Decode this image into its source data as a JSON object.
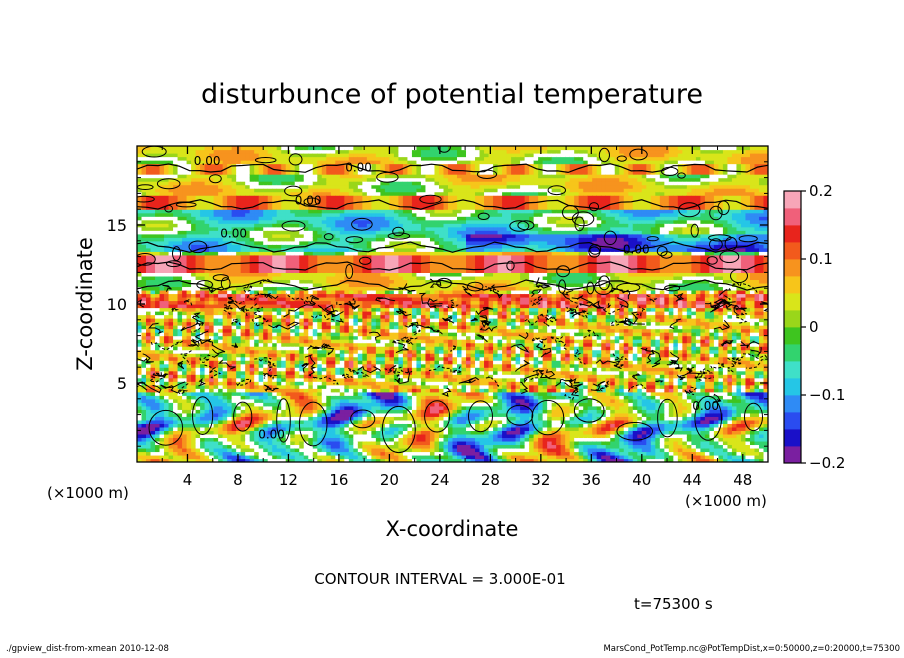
{
  "chart_data": {
    "type": "heatmap",
    "title": "disturbunce of potential temperature",
    "xlabel": "X-coordinate",
    "ylabel": "Z-coordinate",
    "x_unit_left": "(×1000 m)",
    "x_unit_right": "(×1000 m)",
    "xlim": [
      0,
      50
    ],
    "ylim": [
      0,
      20
    ],
    "x_ticks": [
      4,
      8,
      12,
      16,
      20,
      24,
      28,
      32,
      36,
      40,
      44,
      48
    ],
    "x_tick_labels": [
      "4",
      "8",
      "12",
      "16",
      "20",
      "24",
      "28",
      "32",
      "36",
      "40",
      "44",
      "48"
    ],
    "y_ticks": [
      5,
      10,
      15
    ],
    "y_tick_labels": [
      "5",
      "10",
      "15"
    ],
    "colorbar": {
      "min": -0.2,
      "max": 0.2,
      "ticks": [
        0.2,
        0.1,
        0,
        -0.1,
        -0.2
      ],
      "tick_labels": [
        "0.2",
        "0.1",
        "0",
        "−0.1",
        "−0.2"
      ],
      "colors": [
        "#7a1fa0",
        "#1a10c8",
        "#2a4cf0",
        "#2f8bf5",
        "#25c6e6",
        "#3fe0c8",
        "#32d36e",
        "#3ec51f",
        "#9ad61a",
        "#d9e51a",
        "#f7c51a",
        "#f7931e",
        "#f25a1c",
        "#e8241c",
        "#f0607a",
        "#f7a6b8"
      ]
    },
    "contour_labels": [
      "0.00",
      "0.00",
      "0.00",
      "0.00",
      "0.00",
      "0.00",
      "0.00"
    ],
    "contour_interval_text": "CONTOUR INTERVAL = 3.000E-01",
    "time_text": "t=75300 s"
  },
  "footer": {
    "left": "./gpview_dist-from-xmean  2010-12-08",
    "right": "MarsCond_PotTemp.nc@PotTempDist,x=0:50000,z=0:20000,t=75300"
  }
}
